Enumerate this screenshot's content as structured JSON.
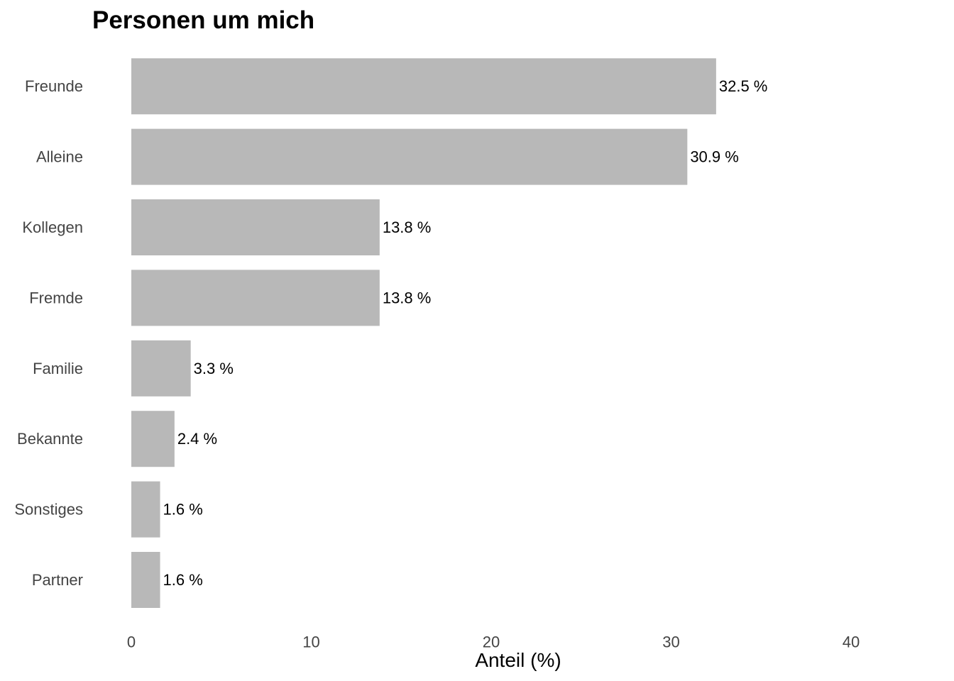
{
  "chart_data": {
    "type": "bar",
    "orientation": "horizontal",
    "title": "Personen um mich",
    "xlabel": "Anteil (%)",
    "ylabel": "",
    "categories": [
      "Freunde",
      "Alleine",
      "Kollegen",
      "Fremde",
      "Familie",
      "Bekannte",
      "Sonstiges",
      "Partner"
    ],
    "values": [
      32.5,
      30.9,
      13.8,
      13.8,
      3.3,
      2.4,
      1.6,
      1.6
    ],
    "value_labels": [
      "32.5 %",
      "30.9 %",
      "13.8 %",
      "13.8 %",
      "3.3 %",
      "2.4 %",
      "1.6 %",
      "1.6 %"
    ],
    "xlim": [
      0,
      40
    ],
    "xticks": [
      0,
      10,
      20,
      30,
      40
    ],
    "xtick_labels": [
      "0",
      "10",
      "20",
      "30",
      "40"
    ],
    "grid": false,
    "legend": "none",
    "bar_color": "#b8b8b8"
  }
}
